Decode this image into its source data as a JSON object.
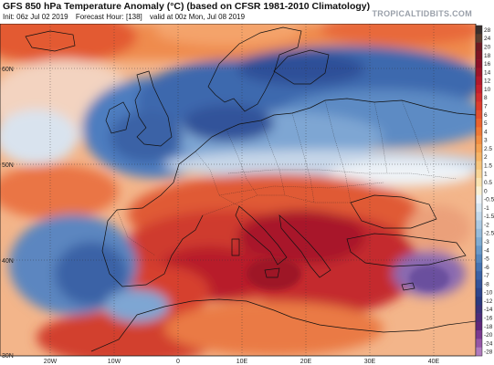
{
  "header": {
    "title": "GFS 850 hPa Temperature Anomaly (°C) (based on CFSR 1981-2010 Climatology)",
    "init": "Init: 06z Jul 02 2019",
    "forecast_hour": "Forecast Hour: [138]",
    "valid": "valid at 00z Mon, Jul 08 2019",
    "brand": "TROPICALTIDBITS.COM"
  },
  "map": {
    "lat_labels": [
      "60N",
      "50N",
      "40N",
      "30N"
    ],
    "lon_labels": [
      "20W",
      "10W",
      "0",
      "10E",
      "20E",
      "30E",
      "40E"
    ]
  },
  "colorbar": {
    "labels": [
      "28",
      "24",
      "20",
      "18",
      "16",
      "14",
      "12",
      "10",
      "8",
      "7",
      "6",
      "5",
      "4",
      "3",
      "2.5",
      "2",
      "1.5",
      "1",
      "0.5",
      "0",
      "-0.5",
      "-1",
      "-1.5",
      "-2",
      "-2.5",
      "-3",
      "-4",
      "-5",
      "-6",
      "-7",
      "-8",
      "-10",
      "-12",
      "-14",
      "-16",
      "-18",
      "-20",
      "-24",
      "-28"
    ],
    "colors": [
      "#3a2f2c",
      "#5a3c2e",
      "#6e1a22",
      "#7d1424",
      "#8c1026",
      "#9e1428",
      "#b3192c",
      "#c4212e",
      "#d32e2e",
      "#dd3d2c",
      "#e44f2c",
      "#ea632f",
      "#ef7936",
      "#f38e42",
      "#f5a253",
      "#f7b466",
      "#f8c57c",
      "#f9d595",
      "#fae4b2",
      "#fbf1d4",
      "#eef3f7",
      "#d9e7f1",
      "#c4d9ea",
      "#aecbe3",
      "#97bcdb",
      "#80acd2",
      "#6999c8",
      "#5586bd",
      "#4573b2",
      "#3a62a6",
      "#33539a",
      "#2d458c",
      "#2a3a7f",
      "#3b327a",
      "#4d2c7a",
      "#5f287a",
      "#7a3a90",
      "#9556a6",
      "#b07abd"
    ]
  }
}
